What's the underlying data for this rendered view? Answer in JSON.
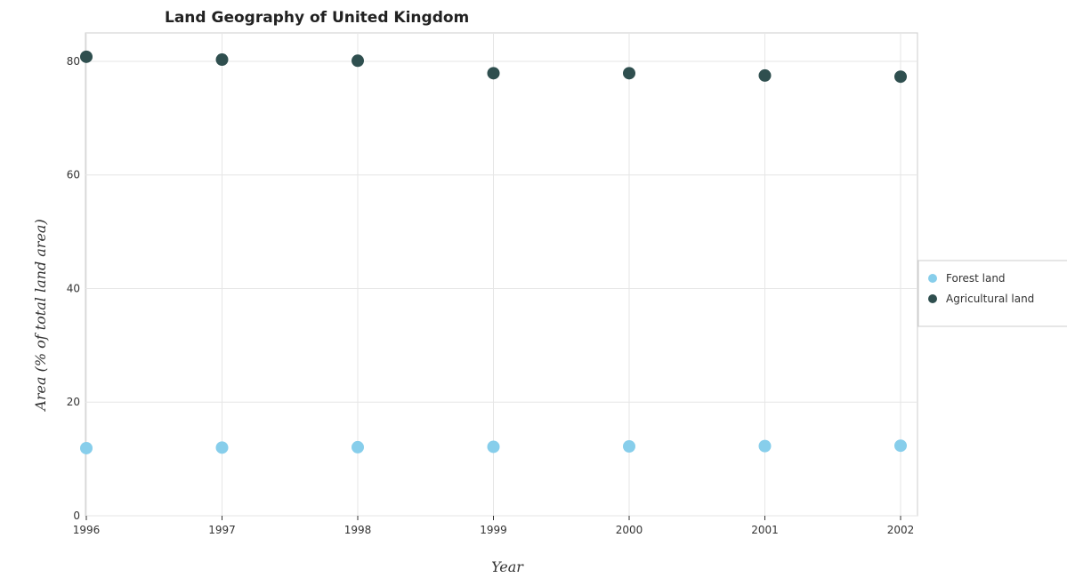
{
  "chart_data": {
    "type": "scatter",
    "title": "Land Geography of United Kingdom",
    "xlabel": "Year",
    "ylabel": "Area (% of total land area)",
    "categories": [
      "1996",
      "1997",
      "1998",
      "1999",
      "2000",
      "2001",
      "2002"
    ],
    "ylim": [
      0,
      85
    ],
    "yticks": [
      0,
      20,
      40,
      60,
      80
    ],
    "grid": true,
    "legend_position": "right",
    "series": [
      {
        "name": "Forest land",
        "color": "#87ceeb",
        "values": [
          11.9,
          12.0,
          12.07,
          12.14,
          12.21,
          12.27,
          12.33
        ]
      },
      {
        "name": "Agricultural land",
        "color": "#2f4f4f",
        "values": [
          80.8,
          80.3,
          80.1,
          77.9,
          77.9,
          77.5,
          77.3
        ]
      }
    ]
  }
}
